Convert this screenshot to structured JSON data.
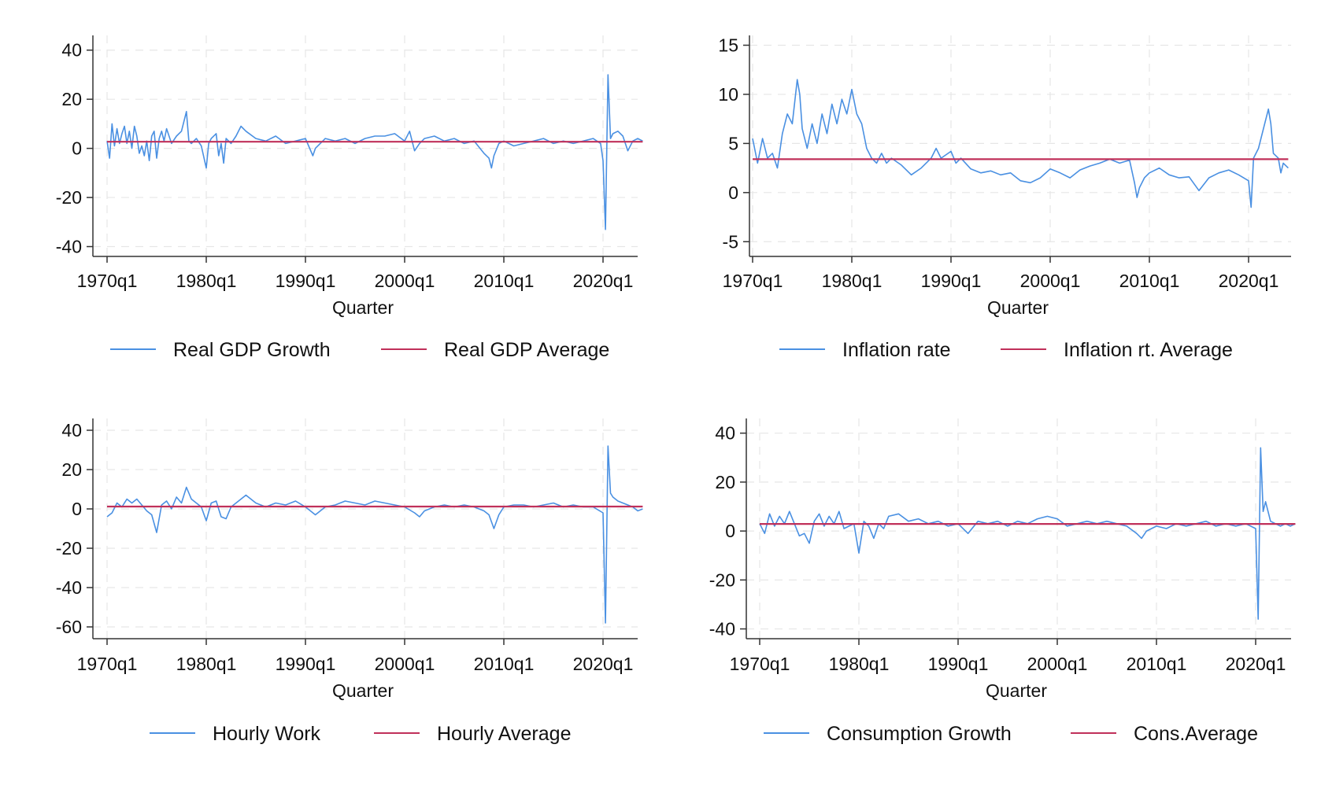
{
  "colors": {
    "series": "#4a90e2",
    "average": "#c0305a",
    "axis": "#333333",
    "grid": "#e6e6e6"
  },
  "chart_data": [
    {
      "type": "line",
      "xlabel": "Quarter",
      "ylabel": "",
      "x_tick_labels": [
        "1970q1",
        "1980q1",
        "1990q1",
        "2000q1",
        "2010q1",
        "2020q1"
      ],
      "x_tick_years": [
        1970,
        1980,
        1990,
        2000,
        2010,
        2020
      ],
      "xlim": [
        1969.5,
        2025.0
      ],
      "ylim": [
        -44,
        46
      ],
      "yticks": [
        40,
        20,
        0,
        -20,
        -40
      ],
      "grid": true,
      "legend": "bottom",
      "series": [
        {
          "name": "Real GDP Growth",
          "x": [
            1970.0,
            1970.25,
            1970.5,
            1970.75,
            1971.0,
            1971.25,
            1971.5,
            1971.75,
            1972.0,
            1972.25,
            1972.5,
            1972.75,
            1973.0,
            1973.25,
            1973.5,
            1973.75,
            1974.0,
            1974.25,
            1974.5,
            1974.75,
            1975.0,
            1975.25,
            1975.5,
            1975.75,
            1976.0,
            1976.5,
            1977.0,
            1977.5,
            1978.0,
            1978.25,
            1978.5,
            1979.0,
            1979.5,
            1980.0,
            1980.25,
            1980.5,
            1981.0,
            1981.25,
            1981.5,
            1981.75,
            1982.0,
            1982.5,
            1983.0,
            1983.5,
            1984.0,
            1985.0,
            1986.0,
            1987.0,
            1988.0,
            1989.0,
            1990.0,
            1990.75,
            1991.0,
            1992.0,
            1993.0,
            1994.0,
            1995.0,
            1996.0,
            1997.0,
            1998.0,
            1999.0,
            2000.0,
            2000.5,
            2001.0,
            2001.5,
            2002.0,
            2003.0,
            2004.0,
            2005.0,
            2006.0,
            2007.0,
            2008.0,
            2008.5,
            2008.75,
            2009.0,
            2009.5,
            2010.0,
            2011.0,
            2012.0,
            2013.0,
            2014.0,
            2015.0,
            2016.0,
            2017.0,
            2018.0,
            2019.0,
            2019.75,
            2020.0,
            2020.25,
            2020.5,
            2020.75,
            2021.0,
            2021.5,
            2022.0,
            2022.5,
            2023.0,
            2023.5,
            2024.0
          ],
          "values": [
            3,
            -4,
            10,
            1,
            8,
            2,
            6,
            9,
            2,
            7,
            0,
            9,
            5,
            -2,
            1,
            -3,
            3,
            -5,
            5,
            7,
            -4,
            4,
            7,
            3,
            8,
            2,
            5,
            7,
            15,
            3,
            2,
            4,
            1,
            -8,
            2,
            4,
            6,
            -3,
            2,
            -6,
            4,
            2,
            5,
            9,
            7,
            4,
            3,
            5,
            2,
            3,
            4,
            -3,
            0,
            4,
            3,
            4,
            2,
            4,
            5,
            5,
            6,
            3,
            7,
            -1,
            2,
            4,
            5,
            3,
            4,
            2,
            3,
            -2,
            -4,
            -8,
            -3,
            2,
            3,
            1,
            2,
            3,
            4,
            2,
            3,
            2,
            3,
            4,
            2,
            -5,
            -33,
            30,
            4,
            6,
            7,
            5,
            -1,
            3,
            4,
            3
          ]
        },
        {
          "name": "Real GDP Average",
          "x": [
            1970.0,
            2024.0
          ],
          "values": [
            2.7,
            2.7
          ]
        }
      ]
    },
    {
      "type": "line",
      "xlabel": "Quarter",
      "ylabel": "",
      "x_tick_labels": [
        "1970q1",
        "1980q1",
        "1990q1",
        "2000q1",
        "2010q1",
        "2020q1"
      ],
      "x_tick_years": [
        1970,
        1980,
        1990,
        2000,
        2010,
        2020
      ],
      "xlim": [
        1969.5,
        2025.0
      ],
      "ylim": [
        -6.5,
        16
      ],
      "yticks": [
        15,
        10,
        5,
        0,
        -5
      ],
      "grid": true,
      "legend": "bottom",
      "series": [
        {
          "name": "Inflation rate",
          "x": [
            1970.0,
            1970.5,
            1971.0,
            1971.5,
            1972.0,
            1972.5,
            1973.0,
            1973.5,
            1974.0,
            1974.5,
            1974.75,
            1975.0,
            1975.5,
            1976.0,
            1976.5,
            1977.0,
            1977.5,
            1978.0,
            1978.5,
            1979.0,
            1979.5,
            1980.0,
            1980.5,
            1981.0,
            1981.5,
            1982.0,
            1982.5,
            1983.0,
            1983.5,
            1984.0,
            1985.0,
            1986.0,
            1987.0,
            1988.0,
            1988.5,
            1989.0,
            1990.0,
            1990.5,
            1991.0,
            1992.0,
            1993.0,
            1994.0,
            1995.0,
            1996.0,
            1997.0,
            1998.0,
            1999.0,
            2000.0,
            2001.0,
            2002.0,
            2003.0,
            2004.0,
            2005.0,
            2006.0,
            2007.0,
            2008.0,
            2008.5,
            2008.75,
            2009.0,
            2009.5,
            2010.0,
            2011.0,
            2012.0,
            2013.0,
            2014.0,
            2015.0,
            2016.0,
            2017.0,
            2018.0,
            2019.0,
            2020.0,
            2020.25,
            2020.5,
            2021.0,
            2021.5,
            2022.0,
            2022.25,
            2022.5,
            2023.0,
            2023.25,
            2023.5,
            2024.0
          ],
          "values": [
            5.5,
            3,
            5.5,
            3.5,
            4,
            2.5,
            6,
            8,
            7,
            11.5,
            10,
            6.5,
            4.5,
            7,
            5,
            8,
            6,
            9,
            7,
            9.5,
            8,
            10.5,
            8,
            7,
            4.5,
            3.5,
            3,
            4,
            3,
            3.5,
            2.8,
            1.8,
            2.5,
            3.5,
            4.5,
            3.5,
            4.2,
            3,
            3.5,
            2.4,
            2,
            2.2,
            1.8,
            2,
            1.2,
            1,
            1.5,
            2.4,
            2,
            1.5,
            2.3,
            2.7,
            3,
            3.4,
            3,
            3.3,
            1,
            -0.5,
            0.5,
            1.5,
            2,
            2.5,
            1.8,
            1.5,
            1.6,
            0.2,
            1.5,
            2,
            2.3,
            1.8,
            1.2,
            -1.5,
            3.5,
            4.5,
            6.5,
            8.5,
            7,
            4,
            3.5,
            2,
            3,
            2.5
          ]
        },
        {
          "name": "Inflation rt. Average",
          "x": [
            1970.0,
            2024.0
          ],
          "values": [
            3.4,
            3.4
          ]
        }
      ]
    },
    {
      "type": "line",
      "xlabel": "Quarter",
      "ylabel": "",
      "x_tick_labels": [
        "1970q1",
        "1980q1",
        "1990q1",
        "2000q1",
        "2010q1",
        "2020q1"
      ],
      "x_tick_years": [
        1970,
        1980,
        1990,
        2000,
        2010,
        2020
      ],
      "xlim": [
        1969.5,
        2025.0
      ],
      "ylim": [
        -66,
        46
      ],
      "yticks": [
        40,
        20,
        0,
        -20,
        -40,
        -60
      ],
      "grid": true,
      "legend": "bottom",
      "series": [
        {
          "name": "Hourly Work",
          "x": [
            1970.0,
            1970.5,
            1971.0,
            1971.5,
            1972.0,
            1972.5,
            1973.0,
            1973.5,
            1974.0,
            1974.5,
            1975.0,
            1975.5,
            1976.0,
            1976.5,
            1977.0,
            1977.5,
            1978.0,
            1978.5,
            1979.0,
            1979.5,
            1980.0,
            1980.5,
            1981.0,
            1981.5,
            1982.0,
            1982.5,
            1983.0,
            1984.0,
            1985.0,
            1986.0,
            1987.0,
            1988.0,
            1989.0,
            1990.0,
            1991.0,
            1992.0,
            1993.0,
            1994.0,
            1995.0,
            1996.0,
            1997.0,
            1998.0,
            1999.0,
            2000.0,
            2001.0,
            2001.5,
            2002.0,
            2003.0,
            2004.0,
            2005.0,
            2006.0,
            2007.0,
            2008.0,
            2008.5,
            2009.0,
            2009.5,
            2010.0,
            2011.0,
            2012.0,
            2013.0,
            2014.0,
            2015.0,
            2016.0,
            2017.0,
            2018.0,
            2019.0,
            2020.0,
            2020.25,
            2020.5,
            2020.75,
            2021.0,
            2021.5,
            2022.0,
            2022.5,
            2023.0,
            2023.5,
            2024.0
          ],
          "values": [
            -4,
            -2,
            3,
            1,
            5,
            3,
            5,
            2,
            -1,
            -3,
            -12,
            2,
            4,
            0,
            6,
            3,
            11,
            5,
            3,
            1,
            -6,
            3,
            4,
            -4,
            -5,
            1,
            3,
            7,
            3,
            1,
            3,
            2,
            4,
            1,
            -3,
            1,
            2,
            4,
            3,
            2,
            4,
            3,
            2,
            1,
            -2,
            -4,
            -1,
            1,
            2,
            1,
            2,
            1,
            -1,
            -3,
            -10,
            -3,
            1,
            2,
            2,
            1,
            2,
            3,
            1,
            2,
            1,
            1,
            -2,
            -58,
            32,
            8,
            6,
            4,
            3,
            2,
            1,
            -1,
            0
          ]
        },
        {
          "name": "Hourly Average",
          "x": [
            1970.0,
            2024.0
          ],
          "values": [
            1.2,
            1.2
          ]
        }
      ]
    },
    {
      "type": "line",
      "xlabel": "Quarter",
      "ylabel": "",
      "x_tick_labels": [
        "1970q1",
        "1980q1",
        "1990q1",
        "2000q1",
        "2010q1",
        "2020q1"
      ],
      "x_tick_years": [
        1970,
        1980,
        1990,
        2000,
        2010,
        2020
      ],
      "xlim": [
        1969.5,
        2025.0
      ],
      "ylim": [
        -44,
        46
      ],
      "yticks": [
        40,
        20,
        0,
        -20,
        -40
      ],
      "grid": true,
      "legend": "bottom",
      "series": [
        {
          "name": "Consumption Growth",
          "x": [
            1970.0,
            1970.5,
            1971.0,
            1971.5,
            1972.0,
            1972.5,
            1973.0,
            1973.5,
            1974.0,
            1974.5,
            1975.0,
            1975.5,
            1976.0,
            1976.5,
            1977.0,
            1977.5,
            1978.0,
            1978.5,
            1979.0,
            1979.5,
            1980.0,
            1980.5,
            1981.0,
            1981.5,
            1982.0,
            1982.5,
            1983.0,
            1984.0,
            1985.0,
            1986.0,
            1987.0,
            1988.0,
            1989.0,
            1990.0,
            1991.0,
            1992.0,
            1993.0,
            1994.0,
            1995.0,
            1996.0,
            1997.0,
            1998.0,
            1999.0,
            2000.0,
            2001.0,
            2002.0,
            2003.0,
            2004.0,
            2005.0,
            2006.0,
            2007.0,
            2008.0,
            2008.5,
            2009.0,
            2010.0,
            2011.0,
            2012.0,
            2013.0,
            2014.0,
            2015.0,
            2016.0,
            2017.0,
            2018.0,
            2019.0,
            2020.0,
            2020.25,
            2020.5,
            2020.75,
            2021.0,
            2021.5,
            2022.0,
            2022.5,
            2023.0,
            2023.5,
            2024.0
          ],
          "values": [
            3,
            -1,
            7,
            2,
            6,
            3,
            8,
            3,
            -2,
            -1,
            -5,
            4,
            7,
            2,
            6,
            3,
            8,
            1,
            2,
            3,
            -9,
            4,
            2,
            -3,
            3,
            1,
            6,
            7,
            4,
            5,
            3,
            4,
            2,
            3,
            -1,
            4,
            3,
            4,
            2,
            4,
            3,
            5,
            6,
            5,
            2,
            3,
            4,
            3,
            4,
            3,
            2,
            -1,
            -3,
            0,
            2,
            1,
            3,
            2,
            3,
            4,
            2,
            3,
            2,
            3,
            1,
            -36,
            34,
            8,
            12,
            4,
            3,
            2,
            3,
            2,
            3
          ]
        },
        {
          "name": "Cons.Average",
          "x": [
            1970.0,
            2024.0
          ],
          "values": [
            2.9,
            2.9
          ]
        }
      ]
    }
  ]
}
